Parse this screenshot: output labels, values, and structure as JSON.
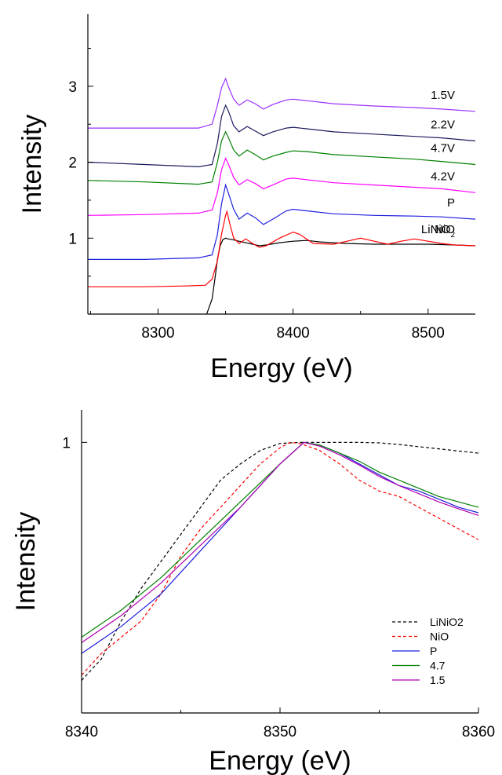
{
  "chart_data": [
    {
      "type": "line",
      "xlabel": "Energy (eV)",
      "ylabel": "Intensity",
      "xlim": [
        8248,
        8535
      ],
      "ylim": [
        0,
        3.95
      ],
      "xticks": [
        8300,
        8400,
        8500
      ],
      "yticks": [
        1,
        2,
        3
      ],
      "grid": false,
      "series": [
        {
          "name": "LiNiO",
          "subscript": "2",
          "color": "#000000",
          "dash": "",
          "points": [
            [
              8336,
              0
            ],
            [
              8340,
              0.2
            ],
            [
              8342,
              0.45
            ],
            [
              8344,
              0.72
            ],
            [
              8346,
              0.9
            ],
            [
              8348,
              0.98
            ],
            [
              8350,
              1.0
            ],
            [
              8352,
              0.99
            ],
            [
              8355,
              0.98
            ],
            [
              8360,
              0.96
            ],
            [
              8365,
              0.94
            ],
            [
              8370,
              0.92
            ],
            [
              8375,
              0.9
            ],
            [
              8380,
              0.91
            ],
            [
              8390,
              0.94
            ],
            [
              8400,
              0.96
            ],
            [
              8410,
              0.97
            ],
            [
              8420,
              0.95
            ],
            [
              8440,
              0.93
            ],
            [
              8460,
              0.92
            ],
            [
              8480,
              0.92
            ],
            [
              8500,
              0.92
            ],
            [
              8520,
              0.91
            ],
            [
              8535,
              0.9
            ]
          ]
        },
        {
          "name": "NiO",
          "color": "#ff0000",
          "dash": "",
          "points": [
            [
              8248,
              0.36
            ],
            [
              8290,
              0.36
            ],
            [
              8320,
              0.37
            ],
            [
              8335,
              0.38
            ],
            [
              8340,
              0.46
            ],
            [
              8344,
              0.7
            ],
            [
              8347,
              1.05
            ],
            [
              8350,
              1.3
            ],
            [
              8351,
              1.35
            ],
            [
              8353,
              1.2
            ],
            [
              8356,
              1.0
            ],
            [
              8360,
              0.93
            ],
            [
              8365,
              0.99
            ],
            [
              8370,
              0.93
            ],
            [
              8375,
              0.88
            ],
            [
              8380,
              0.9
            ],
            [
              8390,
              1.0
            ],
            [
              8400,
              1.08
            ],
            [
              8405,
              1.05
            ],
            [
              8415,
              0.93
            ],
            [
              8430,
              0.92
            ],
            [
              8440,
              0.96
            ],
            [
              8450,
              1.0
            ],
            [
              8460,
              0.96
            ],
            [
              8470,
              0.92
            ],
            [
              8480,
              0.96
            ],
            [
              8490,
              0.99
            ],
            [
              8500,
              0.96
            ],
            [
              8510,
              0.93
            ],
            [
              8520,
              0.91
            ],
            [
              8535,
              0.9
            ]
          ]
        },
        {
          "name": "P",
          "color": "#1f1fe0",
          "dash": "",
          "points": [
            [
              8248,
              0.72
            ],
            [
              8290,
              0.72
            ],
            [
              8330,
              0.74
            ],
            [
              8340,
              0.78
            ],
            [
              8344,
              1.05
            ],
            [
              8347,
              1.45
            ],
            [
              8350,
              1.7
            ],
            [
              8352,
              1.6
            ],
            [
              8356,
              1.38
            ],
            [
              8360,
              1.25
            ],
            [
              8366,
              1.33
            ],
            [
              8372,
              1.27
            ],
            [
              8378,
              1.18
            ],
            [
              8385,
              1.25
            ],
            [
              8395,
              1.36
            ],
            [
              8400,
              1.38
            ],
            [
              8410,
              1.36
            ],
            [
              8430,
              1.32
            ],
            [
              8460,
              1.3
            ],
            [
              8490,
              1.29
            ],
            [
              8510,
              1.28
            ],
            [
              8535,
              1.25
            ]
          ]
        },
        {
          "name": "4.2V",
          "color": "#ff00ff",
          "dash": "",
          "points": [
            [
              8248,
              1.3
            ],
            [
              8290,
              1.31
            ],
            [
              8330,
              1.33
            ],
            [
              8340,
              1.37
            ],
            [
              8344,
              1.6
            ],
            [
              8347,
              1.9
            ],
            [
              8350,
              2.05
            ],
            [
              8352,
              1.98
            ],
            [
              8356,
              1.8
            ],
            [
              8360,
              1.7
            ],
            [
              8366,
              1.77
            ],
            [
              8372,
              1.72
            ],
            [
              8378,
              1.65
            ],
            [
              8385,
              1.7
            ],
            [
              8395,
              1.78
            ],
            [
              8400,
              1.79
            ],
            [
              8410,
              1.77
            ],
            [
              8430,
              1.73
            ],
            [
              8460,
              1.7
            ],
            [
              8490,
              1.67
            ],
            [
              8510,
              1.65
            ],
            [
              8535,
              1.6
            ]
          ]
        },
        {
          "name": "4.7V",
          "color": "#008000",
          "dash": "",
          "points": [
            [
              8248,
              1.76
            ],
            [
              8290,
              1.74
            ],
            [
              8330,
              1.71
            ],
            [
              8340,
              1.74
            ],
            [
              8344,
              2.0
            ],
            [
              8347,
              2.28
            ],
            [
              8350,
              2.4
            ],
            [
              8352,
              2.33
            ],
            [
              8356,
              2.16
            ],
            [
              8360,
              2.08
            ],
            [
              8366,
              2.16
            ],
            [
              8372,
              2.1
            ],
            [
              8378,
              2.03
            ],
            [
              8385,
              2.08
            ],
            [
              8395,
              2.13
            ],
            [
              8400,
              2.15
            ],
            [
              8410,
              2.14
            ],
            [
              8430,
              2.1
            ],
            [
              8460,
              2.07
            ],
            [
              8490,
              2.04
            ],
            [
              8510,
              2.01
            ],
            [
              8535,
              1.97
            ]
          ]
        },
        {
          "name": "2.2V",
          "color": "#1a1a5e",
          "dash": "",
          "points": [
            [
              8248,
              2.0
            ],
            [
              8290,
              1.97
            ],
            [
              8330,
              1.94
            ],
            [
              8340,
              1.97
            ],
            [
              8344,
              2.25
            ],
            [
              8347,
              2.6
            ],
            [
              8350,
              2.75
            ],
            [
              8352,
              2.68
            ],
            [
              8356,
              2.48
            ],
            [
              8360,
              2.4
            ],
            [
              8366,
              2.47
            ],
            [
              8372,
              2.41
            ],
            [
              8378,
              2.35
            ],
            [
              8385,
              2.4
            ],
            [
              8395,
              2.45
            ],
            [
              8400,
              2.46
            ],
            [
              8410,
              2.44
            ],
            [
              8430,
              2.4
            ],
            [
              8460,
              2.37
            ],
            [
              8490,
              2.34
            ],
            [
              8510,
              2.32
            ],
            [
              8535,
              2.28
            ]
          ]
        },
        {
          "name": "1.5V",
          "color": "#9b30ff",
          "dash": "",
          "points": [
            [
              8248,
              2.45
            ],
            [
              8290,
              2.45
            ],
            [
              8330,
              2.45
            ],
            [
              8340,
              2.5
            ],
            [
              8344,
              2.75
            ],
            [
              8347,
              2.98
            ],
            [
              8350,
              3.1
            ],
            [
              8352,
              3.0
            ],
            [
              8356,
              2.83
            ],
            [
              8360,
              2.75
            ],
            [
              8366,
              2.82
            ],
            [
              8372,
              2.77
            ],
            [
              8378,
              2.7
            ],
            [
              8385,
              2.76
            ],
            [
              8395,
              2.82
            ],
            [
              8400,
              2.83
            ],
            [
              8410,
              2.81
            ],
            [
              8430,
              2.77
            ],
            [
              8460,
              2.74
            ],
            [
              8490,
              2.72
            ],
            [
              8510,
              2.7
            ],
            [
              8535,
              2.67
            ]
          ]
        }
      ]
    },
    {
      "type": "line",
      "xlabel": "Energy (eV)",
      "ylabel": "Intensity",
      "xlim": [
        8340,
        8360
      ],
      "ylim": [
        0.5,
        1.06
      ],
      "xticks": [
        8340,
        8350,
        8360
      ],
      "yticks": [
        1
      ],
      "grid": false,
      "legend": "bottom-right",
      "series": [
        {
          "name": "LiNiO2",
          "color": "#000000",
          "dash": "4,3",
          "points": [
            [
              8340,
              0.56
            ],
            [
              8341,
              0.6
            ],
            [
              8342,
              0.67
            ],
            [
              8343,
              0.73
            ],
            [
              8344,
              0.78
            ],
            [
              8345,
              0.83
            ],
            [
              8346,
              0.88
            ],
            [
              8347,
              0.93
            ],
            [
              8348,
              0.96
            ],
            [
              8349,
              0.985
            ],
            [
              8350,
              0.998
            ],
            [
              8351,
              1.0
            ],
            [
              8352,
              1.0
            ],
            [
              8353,
              1.0
            ],
            [
              8354,
              1.0
            ],
            [
              8355,
              0.999
            ],
            [
              8356,
              0.996
            ],
            [
              8357,
              0.992
            ],
            [
              8358,
              0.988
            ],
            [
              8359,
              0.984
            ],
            [
              8360,
              0.98
            ]
          ]
        },
        {
          "name": "NiO",
          "color": "#ff0000",
          "dash": "4,3",
          "points": [
            [
              8340,
              0.57
            ],
            [
              8341,
              0.61
            ],
            [
              8342,
              0.64
            ],
            [
              8343,
              0.67
            ],
            [
              8344,
              0.72
            ],
            [
              8345,
              0.79
            ],
            [
              8346,
              0.84
            ],
            [
              8347,
              0.88
            ],
            [
              8348,
              0.92
            ],
            [
              8349,
              0.96
            ],
            [
              8350,
              0.99
            ],
            [
              8350.5,
              1.0
            ],
            [
              8351,
              0.998
            ],
            [
              8352,
              0.985
            ],
            [
              8353,
              0.96
            ],
            [
              8354,
              0.93
            ],
            [
              8355,
              0.91
            ],
            [
              8356,
              0.9
            ],
            [
              8357,
              0.88
            ],
            [
              8358,
              0.86
            ],
            [
              8359,
              0.84
            ],
            [
              8360,
              0.82
            ]
          ]
        },
        {
          "name": "P",
          "color": "#1f1fe0",
          "dash": "",
          "points": [
            [
              8340,
              0.61
            ],
            [
              8342,
              0.66
            ],
            [
              8344,
              0.72
            ],
            [
              8346,
              0.8
            ],
            [
              8348,
              0.88
            ],
            [
              8350,
              0.96
            ],
            [
              8351.2,
              1.0
            ],
            [
              8352,
              0.995
            ],
            [
              8353,
              0.98
            ],
            [
              8354,
              0.96
            ],
            [
              8355,
              0.94
            ],
            [
              8356,
              0.92
            ],
            [
              8357,
              0.91
            ],
            [
              8358,
              0.895
            ],
            [
              8359,
              0.88
            ],
            [
              8360,
              0.87
            ]
          ]
        },
        {
          "name": "4.7",
          "color": "#008000",
          "dash": "",
          "points": [
            [
              8340,
              0.64
            ],
            [
              8342,
              0.69
            ],
            [
              8344,
              0.75
            ],
            [
              8346,
              0.82
            ],
            [
              8348,
              0.89
            ],
            [
              8350,
              0.96
            ],
            [
              8351.2,
              1.0
            ],
            [
              8352,
              0.995
            ],
            [
              8353,
              0.98
            ],
            [
              8354,
              0.965
            ],
            [
              8355,
              0.945
            ],
            [
              8356,
              0.93
            ],
            [
              8357,
              0.915
            ],
            [
              8358,
              0.9
            ],
            [
              8359,
              0.89
            ],
            [
              8360,
              0.88
            ]
          ]
        },
        {
          "name": "1.5",
          "color": "#b000b0",
          "dash": "",
          "points": [
            [
              8340,
              0.63
            ],
            [
              8342,
              0.68
            ],
            [
              8344,
              0.74
            ],
            [
              8346,
              0.81
            ],
            [
              8348,
              0.88
            ],
            [
              8350,
              0.96
            ],
            [
              8351.2,
              1.0
            ],
            [
              8352,
              0.993
            ],
            [
              8353,
              0.977
            ],
            [
              8354,
              0.958
            ],
            [
              8355,
              0.937
            ],
            [
              8356,
              0.92
            ],
            [
              8357,
              0.905
            ],
            [
              8358,
              0.89
            ],
            [
              8359,
              0.877
            ],
            [
              8360,
              0.865
            ]
          ]
        }
      ]
    }
  ]
}
